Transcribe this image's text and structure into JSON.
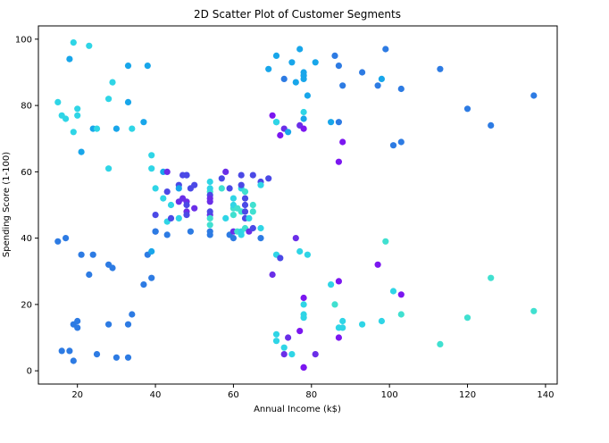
{
  "chart_data": {
    "type": "scatter",
    "title": "2D Scatter Plot of Customer Segments",
    "xlabel": "Annual Income (k$)",
    "ylabel": "Spending Score (1-100)",
    "xlim": [
      10,
      143
    ],
    "ylim": [
      -4,
      104
    ],
    "x_ticks": [
      20,
      40,
      60,
      80,
      100,
      120,
      140
    ],
    "y_ticks": [
      0,
      20,
      40,
      60,
      80,
      100
    ],
    "grid": false,
    "legend": "none",
    "colors": {
      "blue": "#2d7be3",
      "sky": "#18a6ea",
      "cyan": "#2fd5e6",
      "teal": "#40e0d0",
      "purple": "#6a2ee8",
      "violet": "#7b16f0",
      "indigo": "#4b49e6"
    },
    "points": [
      {
        "x": 15,
        "y": 39,
        "c": "blue"
      },
      {
        "x": 15,
        "y": 81,
        "c": "cyan"
      },
      {
        "x": 16,
        "y": 6,
        "c": "blue"
      },
      {
        "x": 16,
        "y": 77,
        "c": "cyan"
      },
      {
        "x": 17,
        "y": 40,
        "c": "blue"
      },
      {
        "x": 17,
        "y": 76,
        "c": "cyan"
      },
      {
        "x": 18,
        "y": 6,
        "c": "blue"
      },
      {
        "x": 18,
        "y": 94,
        "c": "sky"
      },
      {
        "x": 19,
        "y": 3,
        "c": "blue"
      },
      {
        "x": 19,
        "y": 72,
        "c": "cyan"
      },
      {
        "x": 19,
        "y": 14,
        "c": "blue"
      },
      {
        "x": 19,
        "y": 99,
        "c": "cyan"
      },
      {
        "x": 20,
        "y": 15,
        "c": "blue"
      },
      {
        "x": 20,
        "y": 77,
        "c": "cyan"
      },
      {
        "x": 20,
        "y": 13,
        "c": "blue"
      },
      {
        "x": 20,
        "y": 79,
        "c": "cyan"
      },
      {
        "x": 21,
        "y": 35,
        "c": "blue"
      },
      {
        "x": 21,
        "y": 66,
        "c": "sky"
      },
      {
        "x": 23,
        "y": 29,
        "c": "blue"
      },
      {
        "x": 23,
        "y": 98,
        "c": "cyan"
      },
      {
        "x": 24,
        "y": 35,
        "c": "blue"
      },
      {
        "x": 24,
        "y": 73,
        "c": "sky"
      },
      {
        "x": 25,
        "y": 5,
        "c": "blue"
      },
      {
        "x": 25,
        "y": 73,
        "c": "cyan"
      },
      {
        "x": 28,
        "y": 14,
        "c": "blue"
      },
      {
        "x": 28,
        "y": 82,
        "c": "cyan"
      },
      {
        "x": 28,
        "y": 32,
        "c": "blue"
      },
      {
        "x": 28,
        "y": 61,
        "c": "cyan"
      },
      {
        "x": 29,
        "y": 31,
        "c": "blue"
      },
      {
        "x": 29,
        "y": 87,
        "c": "cyan"
      },
      {
        "x": 30,
        "y": 4,
        "c": "blue"
      },
      {
        "x": 30,
        "y": 73,
        "c": "sky"
      },
      {
        "x": 33,
        "y": 4,
        "c": "blue"
      },
      {
        "x": 33,
        "y": 92,
        "c": "sky"
      },
      {
        "x": 33,
        "y": 14,
        "c": "blue"
      },
      {
        "x": 33,
        "y": 81,
        "c": "sky"
      },
      {
        "x": 34,
        "y": 17,
        "c": "blue"
      },
      {
        "x": 34,
        "y": 73,
        "c": "cyan"
      },
      {
        "x": 37,
        "y": 26,
        "c": "blue"
      },
      {
        "x": 37,
        "y": 75,
        "c": "sky"
      },
      {
        "x": 38,
        "y": 35,
        "c": "blue"
      },
      {
        "x": 38,
        "y": 92,
        "c": "sky"
      },
      {
        "x": 39,
        "y": 36,
        "c": "sky"
      },
      {
        "x": 39,
        "y": 61,
        "c": "cyan"
      },
      {
        "x": 39,
        "y": 28,
        "c": "blue"
      },
      {
        "x": 39,
        "y": 65,
        "c": "cyan"
      },
      {
        "x": 40,
        "y": 55,
        "c": "cyan"
      },
      {
        "x": 40,
        "y": 47,
        "c": "indigo"
      },
      {
        "x": 40,
        "y": 42,
        "c": "indigo"
      },
      {
        "x": 40,
        "y": 42,
        "c": "blue"
      },
      {
        "x": 42,
        "y": 52,
        "c": "cyan"
      },
      {
        "x": 42,
        "y": 60,
        "c": "sky"
      },
      {
        "x": 43,
        "y": 54,
        "c": "indigo"
      },
      {
        "x": 43,
        "y": 60,
        "c": "purple"
      },
      {
        "x": 43,
        "y": 45,
        "c": "cyan"
      },
      {
        "x": 43,
        "y": 41,
        "c": "blue"
      },
      {
        "x": 44,
        "y": 50,
        "c": "cyan"
      },
      {
        "x": 44,
        "y": 46,
        "c": "indigo"
      },
      {
        "x": 46,
        "y": 51,
        "c": "purple"
      },
      {
        "x": 46,
        "y": 46,
        "c": "cyan"
      },
      {
        "x": 46,
        "y": 56,
        "c": "indigo"
      },
      {
        "x": 46,
        "y": 55,
        "c": "sky"
      },
      {
        "x": 47,
        "y": 52,
        "c": "purple"
      },
      {
        "x": 47,
        "y": 59,
        "c": "indigo"
      },
      {
        "x": 48,
        "y": 51,
        "c": "purple"
      },
      {
        "x": 48,
        "y": 59,
        "c": "sky"
      },
      {
        "x": 48,
        "y": 50,
        "c": "indigo"
      },
      {
        "x": 48,
        "y": 48,
        "c": "purple"
      },
      {
        "x": 48,
        "y": 59,
        "c": "indigo"
      },
      {
        "x": 48,
        "y": 47,
        "c": "indigo"
      },
      {
        "x": 49,
        "y": 55,
        "c": "indigo"
      },
      {
        "x": 49,
        "y": 42,
        "c": "blue"
      },
      {
        "x": 50,
        "y": 49,
        "c": "purple"
      },
      {
        "x": 50,
        "y": 56,
        "c": "indigo"
      },
      {
        "x": 54,
        "y": 47,
        "c": "purple"
      },
      {
        "x": 54,
        "y": 54,
        "c": "teal"
      },
      {
        "x": 54,
        "y": 53,
        "c": "indigo"
      },
      {
        "x": 54,
        "y": 48,
        "c": "indigo"
      },
      {
        "x": 54,
        "y": 52,
        "c": "purple"
      },
      {
        "x": 54,
        "y": 42,
        "c": "blue"
      },
      {
        "x": 54,
        "y": 51,
        "c": "purple"
      },
      {
        "x": 54,
        "y": 55,
        "c": "cyan"
      },
      {
        "x": 54,
        "y": 41,
        "c": "blue"
      },
      {
        "x": 54,
        "y": 44,
        "c": "teal"
      },
      {
        "x": 54,
        "y": 57,
        "c": "cyan"
      },
      {
        "x": 54,
        "y": 46,
        "c": "teal"
      },
      {
        "x": 57,
        "y": 58,
        "c": "indigo"
      },
      {
        "x": 57,
        "y": 55,
        "c": "teal"
      },
      {
        "x": 58,
        "y": 60,
        "c": "purple"
      },
      {
        "x": 58,
        "y": 46,
        "c": "cyan"
      },
      {
        "x": 59,
        "y": 55,
        "c": "indigo"
      },
      {
        "x": 59,
        "y": 41,
        "c": "blue"
      },
      {
        "x": 60,
        "y": 49,
        "c": "teal"
      },
      {
        "x": 60,
        "y": 40,
        "c": "blue"
      },
      {
        "x": 60,
        "y": 42,
        "c": "purple"
      },
      {
        "x": 60,
        "y": 52,
        "c": "cyan"
      },
      {
        "x": 60,
        "y": 47,
        "c": "teal"
      },
      {
        "x": 60,
        "y": 50,
        "c": "cyan"
      },
      {
        "x": 61,
        "y": 42,
        "c": "teal"
      },
      {
        "x": 61,
        "y": 49,
        "c": "teal"
      },
      {
        "x": 62,
        "y": 41,
        "c": "cyan"
      },
      {
        "x": 62,
        "y": 48,
        "c": "teal"
      },
      {
        "x": 62,
        "y": 59,
        "c": "indigo"
      },
      {
        "x": 62,
        "y": 55,
        "c": "cyan"
      },
      {
        "x": 62,
        "y": 56,
        "c": "indigo"
      },
      {
        "x": 62,
        "y": 42,
        "c": "cyan"
      },
      {
        "x": 63,
        "y": 50,
        "c": "indigo"
      },
      {
        "x": 63,
        "y": 46,
        "c": "indigo"
      },
      {
        "x": 63,
        "y": 43,
        "c": "teal"
      },
      {
        "x": 63,
        "y": 48,
        "c": "indigo"
      },
      {
        "x": 63,
        "y": 52,
        "c": "indigo"
      },
      {
        "x": 63,
        "y": 54,
        "c": "teal"
      },
      {
        "x": 64,
        "y": 42,
        "c": "purple"
      },
      {
        "x": 64,
        "y": 46,
        "c": "cyan"
      },
      {
        "x": 65,
        "y": 48,
        "c": "teal"
      },
      {
        "x": 65,
        "y": 50,
        "c": "teal"
      },
      {
        "x": 65,
        "y": 43,
        "c": "indigo"
      },
      {
        "x": 65,
        "y": 59,
        "c": "indigo"
      },
      {
        "x": 67,
        "y": 43,
        "c": "cyan"
      },
      {
        "x": 67,
        "y": 57,
        "c": "indigo"
      },
      {
        "x": 67,
        "y": 56,
        "c": "cyan"
      },
      {
        "x": 67,
        "y": 40,
        "c": "blue"
      },
      {
        "x": 69,
        "y": 58,
        "c": "indigo"
      },
      {
        "x": 69,
        "y": 91,
        "c": "sky"
      },
      {
        "x": 70,
        "y": 29,
        "c": "purple"
      },
      {
        "x": 70,
        "y": 77,
        "c": "violet"
      },
      {
        "x": 71,
        "y": 35,
        "c": "cyan"
      },
      {
        "x": 71,
        "y": 95,
        "c": "sky"
      },
      {
        "x": 71,
        "y": 11,
        "c": "cyan"
      },
      {
        "x": 71,
        "y": 75,
        "c": "sky"
      },
      {
        "x": 71,
        "y": 9,
        "c": "cyan"
      },
      {
        "x": 71,
        "y": 75,
        "c": "cyan"
      },
      {
        "x": 72,
        "y": 34,
        "c": "indigo"
      },
      {
        "x": 72,
        "y": 71,
        "c": "violet"
      },
      {
        "x": 73,
        "y": 5,
        "c": "purple"
      },
      {
        "x": 73,
        "y": 88,
        "c": "blue"
      },
      {
        "x": 73,
        "y": 7,
        "c": "cyan"
      },
      {
        "x": 73,
        "y": 73,
        "c": "purple"
      },
      {
        "x": 74,
        "y": 10,
        "c": "purple"
      },
      {
        "x": 74,
        "y": 72,
        "c": "sky"
      },
      {
        "x": 75,
        "y": 5,
        "c": "cyan"
      },
      {
        "x": 75,
        "y": 93,
        "c": "sky"
      },
      {
        "x": 76,
        "y": 40,
        "c": "purple"
      },
      {
        "x": 76,
        "y": 87,
        "c": "sky"
      },
      {
        "x": 77,
        "y": 12,
        "c": "violet"
      },
      {
        "x": 77,
        "y": 97,
        "c": "sky"
      },
      {
        "x": 77,
        "y": 36,
        "c": "cyan"
      },
      {
        "x": 77,
        "y": 74,
        "c": "purple"
      },
      {
        "x": 78,
        "y": 22,
        "c": "violet"
      },
      {
        "x": 78,
        "y": 90,
        "c": "sky"
      },
      {
        "x": 78,
        "y": 17,
        "c": "cyan"
      },
      {
        "x": 78,
        "y": 88,
        "c": "sky"
      },
      {
        "x": 78,
        "y": 20,
        "c": "cyan"
      },
      {
        "x": 78,
        "y": 76,
        "c": "sky"
      },
      {
        "x": 78,
        "y": 16,
        "c": "cyan"
      },
      {
        "x": 78,
        "y": 89,
        "c": "sky"
      },
      {
        "x": 78,
        "y": 1,
        "c": "violet"
      },
      {
        "x": 78,
        "y": 78,
        "c": "cyan"
      },
      {
        "x": 78,
        "y": 1,
        "c": "violet"
      },
      {
        "x": 78,
        "y": 73,
        "c": "violet"
      },
      {
        "x": 79,
        "y": 35,
        "c": "cyan"
      },
      {
        "x": 79,
        "y": 83,
        "c": "sky"
      },
      {
        "x": 81,
        "y": 5,
        "c": "purple"
      },
      {
        "x": 81,
        "y": 93,
        "c": "sky"
      },
      {
        "x": 85,
        "y": 26,
        "c": "cyan"
      },
      {
        "x": 85,
        "y": 75,
        "c": "sky"
      },
      {
        "x": 86,
        "y": 20,
        "c": "teal"
      },
      {
        "x": 86,
        "y": 95,
        "c": "blue"
      },
      {
        "x": 87,
        "y": 27,
        "c": "violet"
      },
      {
        "x": 87,
        "y": 63,
        "c": "violet"
      },
      {
        "x": 87,
        "y": 13,
        "c": "cyan"
      },
      {
        "x": 87,
        "y": 75,
        "c": "blue"
      },
      {
        "x": 87,
        "y": 10,
        "c": "violet"
      },
      {
        "x": 87,
        "y": 92,
        "c": "blue"
      },
      {
        "x": 88,
        "y": 13,
        "c": "cyan"
      },
      {
        "x": 88,
        "y": 86,
        "c": "blue"
      },
      {
        "x": 88,
        "y": 15,
        "c": "cyan"
      },
      {
        "x": 88,
        "y": 69,
        "c": "violet"
      },
      {
        "x": 93,
        "y": 14,
        "c": "cyan"
      },
      {
        "x": 93,
        "y": 90,
        "c": "blue"
      },
      {
        "x": 97,
        "y": 32,
        "c": "violet"
      },
      {
        "x": 97,
        "y": 86,
        "c": "blue"
      },
      {
        "x": 98,
        "y": 15,
        "c": "cyan"
      },
      {
        "x": 98,
        "y": 88,
        "c": "sky"
      },
      {
        "x": 99,
        "y": 39,
        "c": "teal"
      },
      {
        "x": 99,
        "y": 97,
        "c": "blue"
      },
      {
        "x": 101,
        "y": 24,
        "c": "cyan"
      },
      {
        "x": 101,
        "y": 68,
        "c": "blue"
      },
      {
        "x": 103,
        "y": 17,
        "c": "teal"
      },
      {
        "x": 103,
        "y": 85,
        "c": "blue"
      },
      {
        "x": 103,
        "y": 23,
        "c": "violet"
      },
      {
        "x": 103,
        "y": 69,
        "c": "blue"
      },
      {
        "x": 113,
        "y": 8,
        "c": "teal"
      },
      {
        "x": 113,
        "y": 91,
        "c": "blue"
      },
      {
        "x": 120,
        "y": 16,
        "c": "teal"
      },
      {
        "x": 120,
        "y": 79,
        "c": "blue"
      },
      {
        "x": 126,
        "y": 28,
        "c": "teal"
      },
      {
        "x": 126,
        "y": 74,
        "c": "blue"
      },
      {
        "x": 137,
        "y": 18,
        "c": "teal"
      },
      {
        "x": 137,
        "y": 83,
        "c": "blue"
      }
    ]
  }
}
